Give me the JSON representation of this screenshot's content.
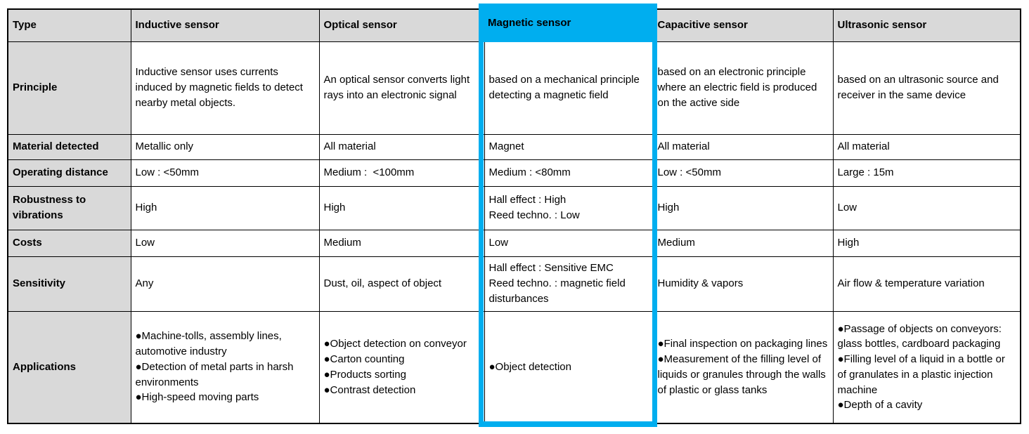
{
  "accent": {
    "highlight_color": "#00aeef",
    "header_bg": "#d9d9d9",
    "border_color": "#000000"
  },
  "icons": {
    "bullet_glyph": "●"
  },
  "table": {
    "row_headers": [
      "Type",
      "Principle",
      "Material detected",
      "Operating distance",
      "Robustness to vibrations",
      "Costs",
      "Sensitivity",
      "Applications"
    ],
    "columns": [
      {
        "label": "Inductive sensor",
        "principle": "Inductive sensor uses currents induced by magnetic fields to detect nearby metal objects.",
        "material_detected": "Metallic only",
        "operating_distance": "Low : <50mm",
        "robustness": [
          "High"
        ],
        "costs": "Low",
        "sensitivity": [
          "Any"
        ],
        "applications": [
          "Machine-tolls, assembly lines, automotive industry",
          "Detection of metal parts in harsh environments",
          "High-speed moving parts"
        ]
      },
      {
        "label": "Optical sensor",
        "principle": "An optical sensor converts light rays into an electronic signal",
        "material_detected": "All material",
        "operating_distance": "Medium :  <100mm",
        "robustness": [
          "High"
        ],
        "costs": "Medium",
        "sensitivity": [
          "Dust, oil, aspect of object"
        ],
        "applications": [
          "Object detection on conveyor",
          "Carton counting",
          "Products sorting",
          "Contrast detection"
        ]
      },
      {
        "label": "Magnetic sensor",
        "principle": "based on a mechanical principle detecting a magnetic field",
        "material_detected": "Magnet",
        "operating_distance": "Medium : <80mm",
        "robustness": [
          "Hall effect : High",
          "Reed techno. : Low"
        ],
        "costs": "Low",
        "sensitivity": [
          "Hall effect : Sensitive EMC",
          "Reed techno. : magnetic field disturbances"
        ],
        "applications": [
          "Object detection"
        ]
      },
      {
        "label": "Capacitive sensor",
        "principle": "based on an electronic principle where an electric field is produced on the active side",
        "material_detected": "All material",
        "operating_distance": "Low : <50mm",
        "robustness": [
          "High"
        ],
        "costs": "Medium",
        "sensitivity": [
          "Humidity & vapors"
        ],
        "applications": [
          "Final inspection on packaging lines",
          "Measurement of the filling level of liquids or granules through the walls of plastic or glass tanks"
        ]
      },
      {
        "label": "Ultrasonic sensor",
        "principle": "based on an ultrasonic source and receiver in the same device",
        "material_detected": "All material",
        "operating_distance": "Large : 15m",
        "robustness": [
          "Low"
        ],
        "costs": "High",
        "sensitivity": [
          "Air flow & temperature variation"
        ],
        "applications": [
          "Passage of objects on conveyors: glass bottles, cardboard packaging",
          "Filling level of a liquid in a bottle or of granulates in a plastic injection machine",
          "Depth of a cavity"
        ]
      }
    ]
  }
}
